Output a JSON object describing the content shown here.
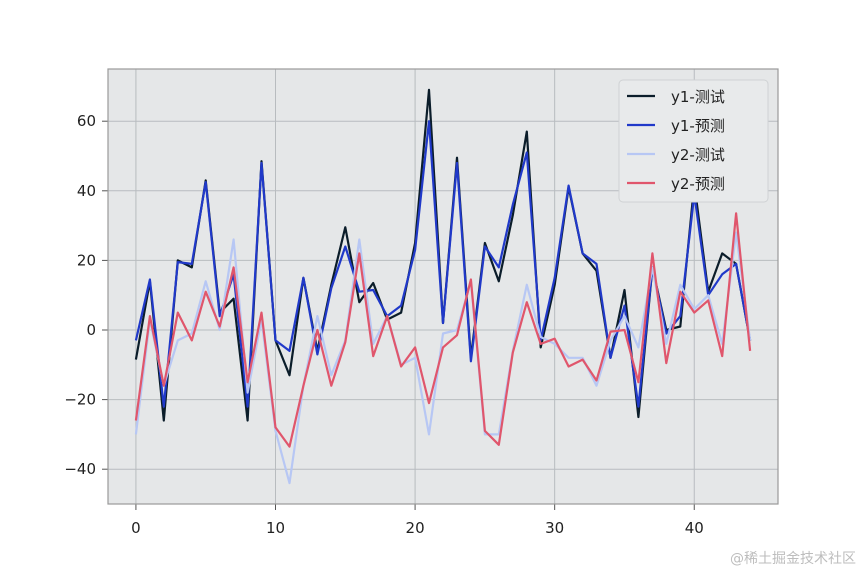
{
  "chart_data": {
    "type": "line",
    "x": [
      0,
      1,
      2,
      3,
      4,
      5,
      6,
      7,
      8,
      9,
      10,
      11,
      12,
      13,
      14,
      15,
      16,
      17,
      18,
      19,
      20,
      21,
      22,
      23,
      24,
      25,
      26,
      27,
      28,
      29,
      30,
      31,
      32,
      33,
      34,
      35,
      36,
      37,
      38,
      39,
      40,
      41,
      42,
      43,
      44
    ],
    "series": [
      {
        "name": "y1-测试",
        "color": "#0b1d2a",
        "values": [
          -8.5,
          14,
          -26,
          20,
          18,
          43,
          5,
          9,
          -26,
          48.5,
          -3,
          -13,
          15,
          -6,
          13,
          29.5,
          8,
          13.5,
          3,
          5,
          25,
          69,
          2,
          49.5,
          -8,
          25,
          14,
          33,
          57,
          -5,
          13,
          41,
          22,
          17,
          -8,
          11.5,
          -25,
          18,
          0,
          1,
          42,
          11,
          22,
          19,
          -3
        ]
      },
      {
        "name": "y1-预测",
        "color": "#2039c9",
        "values": [
          -3,
          14.5,
          -22,
          19.5,
          19,
          42.5,
          4,
          16,
          -22,
          48,
          -3,
          -6,
          15,
          -7,
          12,
          24,
          11,
          11.5,
          4,
          7,
          23,
          60,
          2,
          48,
          -9,
          24,
          18,
          36,
          51,
          -3,
          15,
          41.5,
          22,
          19,
          -8,
          7,
          -22,
          18,
          -1,
          4,
          39,
          10,
          16,
          19,
          -3
        ]
      },
      {
        "name": "y2-测试",
        "color": "#b7c7f4",
        "values": [
          -30,
          3,
          -16,
          -3,
          -1,
          14,
          0,
          26,
          -18,
          3,
          -29,
          -44,
          -16,
          4,
          -13,
          -3,
          26,
          -4,
          4,
          -10,
          -8,
          -30,
          -1,
          0,
          14,
          -30,
          -30,
          -6,
          13,
          -2,
          -4,
          -8,
          -8,
          -16,
          -3,
          4,
          -5,
          18,
          -4,
          13,
          6,
          10,
          -4,
          28,
          -3
        ]
      },
      {
        "name": "y2-预测",
        "color": "#e0566c",
        "values": [
          -26,
          4,
          -16,
          5,
          -3,
          11,
          1,
          18,
          -15,
          5,
          -28,
          -33.5,
          -16,
          0,
          -16,
          -3.5,
          22,
          -7.5,
          4,
          -10.5,
          -5,
          -21,
          -5,
          -1.5,
          14.5,
          -29,
          -33,
          -6.5,
          8,
          -4,
          -2.5,
          -10.5,
          -8.5,
          -14.5,
          -0.5,
          0,
          -15,
          22,
          -9.5,
          11,
          5,
          8.5,
          -7.5,
          33.5,
          -6
        ]
      }
    ],
    "xlim": [
      -2,
      46
    ],
    "ylim": [
      -50,
      75
    ],
    "xticks": [
      0,
      10,
      20,
      30,
      40
    ],
    "yticks": [
      -40,
      -20,
      0,
      20,
      40,
      60
    ],
    "xtick_labels": [
      "0",
      "10",
      "20",
      "30",
      "40"
    ],
    "ytick_labels": [
      "−40",
      "−20",
      "0",
      "20",
      "40",
      "60"
    ],
    "grid": true,
    "legend_position": "top-right",
    "background": "#e5e7e8"
  },
  "watermark": "@稀土掘金技术社区"
}
